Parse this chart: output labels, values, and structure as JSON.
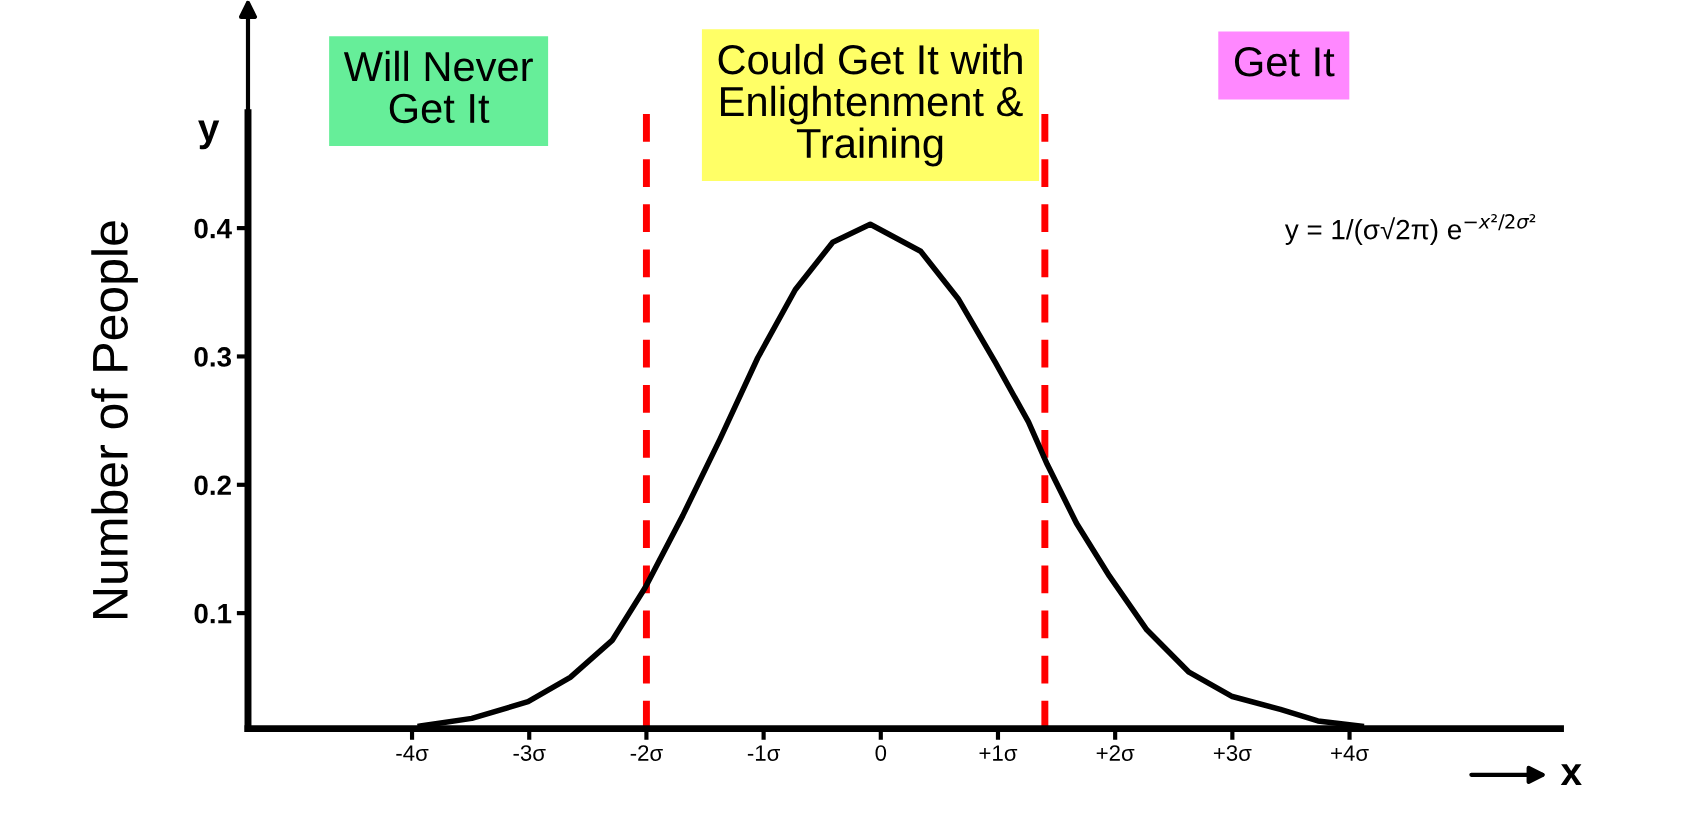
{
  "chart_data": {
    "type": "line",
    "ylabel": "Number of People",
    "xlabel": "x",
    "x": [
      -3.93,
      -3.49,
      -3.01,
      -2.65,
      -2.29,
      -2.01,
      -1.69,
      -1.37,
      -1.05,
      -0.73,
      -0.41,
      -0.09,
      0.34,
      0.66,
      0.98,
      1.26,
      1.42,
      1.67,
      1.95,
      2.27,
      2.63,
      3.0,
      3.41,
      3.73,
      4.1
    ],
    "series": [
      {
        "color": "#000000",
        "values": [
          0.012,
          0.018,
          0.031,
          0.05,
          0.079,
          0.12,
          0.176,
          0.236,
          0.299,
          0.352,
          0.389,
          0.403,
          0.382,
          0.345,
          0.295,
          0.249,
          0.216,
          0.17,
          0.129,
          0.087,
          0.054,
          0.035,
          0.025,
          0.016,
          0.012
        ]
      }
    ],
    "xlim": [
      -5.4,
      5.8
    ],
    "ylim": [
      0.01,
      0.49
    ],
    "xticks": [
      {
        "value": -4,
        "label": "-4σ"
      },
      {
        "value": -3,
        "label": "-3σ"
      },
      {
        "value": -2,
        "label": "-2σ"
      },
      {
        "value": -1,
        "label": "-1σ"
      },
      0,
      {
        "value": 1,
        "label": "+1σ"
      },
      {
        "value": 2,
        "label": "+2σ"
      },
      {
        "value": 3,
        "label": "+3σ"
      },
      {
        "value": 4,
        "label": "+4σ"
      }
    ],
    "yticks": [
      0.1,
      0.2,
      0.3,
      0.4
    ],
    "ref_lines": [
      {
        "axis": "x",
        "value": -2,
        "color": "#ff0000",
        "line_style": "dashed"
      },
      {
        "axis": "x",
        "value": 1.4,
        "color": "#ff0000",
        "line_style": "dashed"
      }
    ],
    "annotations": [
      "Will Never\nGet It",
      "Could Get It with\nEnlightenment &\nTraining",
      "Get It",
      "y",
      "y = 1/(σ√2π) e$^{−x²/2σ²}$"
    ],
    "grid": false,
    "legend": false,
    "marker": "none",
    "line_style": "solid"
  }
}
